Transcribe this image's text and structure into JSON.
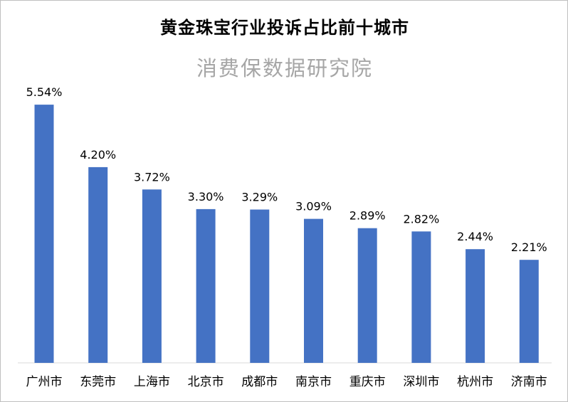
{
  "chart_data": {
    "type": "bar",
    "title": "黄金珠宝行业投诉占比前十城市",
    "subtitle": "消费保数据研究院",
    "categories": [
      "广州市",
      "东莞市",
      "上海市",
      "北京市",
      "成都市",
      "南京市",
      "重庆市",
      "深圳市",
      "杭州市",
      "济南市"
    ],
    "values": [
      5.54,
      4.2,
      3.72,
      3.3,
      3.29,
      3.09,
      2.89,
      2.82,
      2.44,
      2.21
    ],
    "value_labels": [
      "5.54%",
      "4.20%",
      "3.72%",
      "3.30%",
      "3.29%",
      "3.09%",
      "2.89%",
      "2.82%",
      "2.44%",
      "2.21%"
    ],
    "xlabel": "",
    "ylabel": "",
    "ylim": [
      0,
      6
    ],
    "grid": false,
    "legend": "none",
    "bar_color": "#4472c4",
    "axis_color": "#d9d9d9"
  }
}
